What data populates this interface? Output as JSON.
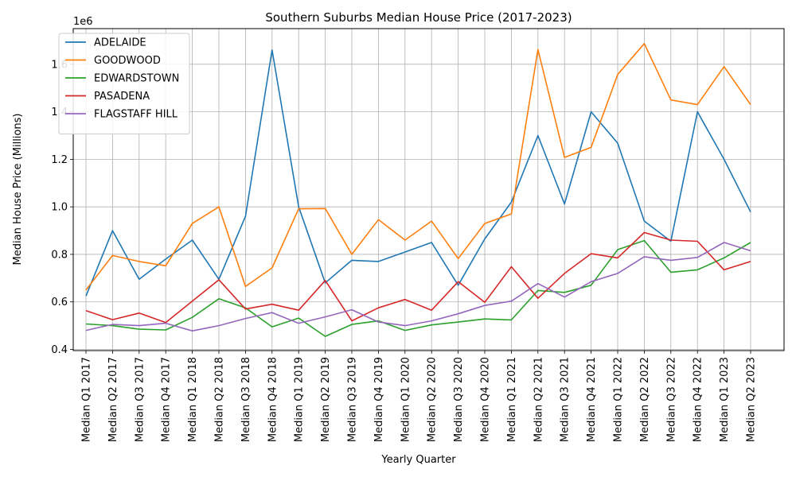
{
  "chart_data": {
    "type": "line",
    "title": "Southern Suburbs Median House Price (2017-2023)",
    "xlabel": "Yearly Quarter",
    "ylabel": "Median House Price (Millions)",
    "y_offset_text": "1e6",
    "ylim": [
      395000,
      1750000
    ],
    "yticks": [
      400000,
      600000,
      800000,
      1000000,
      1200000,
      1400000,
      1600000
    ],
    "ytick_labels": [
      "0.4",
      "0.6",
      "0.8",
      "1.0",
      "1.2",
      "1.4",
      "1.6"
    ],
    "grid": true,
    "legend_position": "upper-left",
    "categories": [
      "Median Q1 2017",
      "Median Q2 2017",
      "Median Q3 2017",
      "Median Q4 2017",
      "Median Q1 2018",
      "Median Q2 2018",
      "Median Q3 2018",
      "Median Q4 2018",
      "Median Q1 2019",
      "Median Q2 2019",
      "Median Q3 2019",
      "Median Q4 2019",
      "Median Q1 2020",
      "Median Q2 2020",
      "Median Q3 2020",
      "Median Q4 2020",
      "Median Q1 2021",
      "Median Q2 2021",
      "Median Q3 2021",
      "Median Q4 2021",
      "Median Q1 2022",
      "Median Q2 2022",
      "Median Q3 2022",
      "Median Q4 2022",
      "Median Q1 2023",
      "Median Q2 2023"
    ],
    "series": [
      {
        "name": "ADELAIDE",
        "color": "#1f77b4",
        "values": [
          625000,
          900000,
          695000,
          780000,
          860000,
          695000,
          960000,
          1660000,
          1000000,
          680000,
          775000,
          770000,
          810000,
          850000,
          670000,
          865000,
          1020000,
          1300000,
          1012000,
          1400000,
          1268000,
          940000,
          855000,
          1400000,
          1200000,
          978000
        ]
      },
      {
        "name": "GOODWOOD",
        "color": "#ff7f0e",
        "values": [
          650000,
          795000,
          770000,
          752000,
          930000,
          1000000,
          665000,
          743000,
          992000,
          993000,
          800000,
          946000,
          860000,
          940000,
          782000,
          930000,
          970000,
          1662000,
          1208000,
          1250000,
          1557000,
          1687000,
          1450000,
          1430000,
          1590000,
          1430000
        ]
      },
      {
        "name": "EDWARDSTOWN",
        "color": "#2ca02c",
        "values": [
          507000,
          500000,
          485000,
          482000,
          535000,
          613000,
          575000,
          495000,
          532000,
          455000,
          505000,
          520000,
          480000,
          503000,
          515000,
          528000,
          524000,
          648000,
          640000,
          670000,
          820000,
          858000,
          725000,
          735000,
          785000,
          850000
        ]
      },
      {
        "name": "PASADENA",
        "color": "#d62728",
        "values": [
          563000,
          525000,
          553000,
          513000,
          603000,
          693000,
          570000,
          590000,
          565000,
          690000,
          520000,
          575000,
          610000,
          565000,
          685000,
          598000,
          748000,
          615000,
          720000,
          803000,
          785000,
          892000,
          860000,
          855000,
          735000,
          770000
        ]
      },
      {
        "name": "FLAGSTAFF HILL",
        "color": "#9467bd",
        "values": [
          480000,
          505000,
          500000,
          510000,
          478000,
          500000,
          530000,
          555000,
          510000,
          537000,
          567000,
          515000,
          500000,
          520000,
          550000,
          585000,
          603000,
          677000,
          620000,
          685000,
          720000,
          790000,
          775000,
          787000,
          850000,
          815000
        ]
      }
    ]
  }
}
